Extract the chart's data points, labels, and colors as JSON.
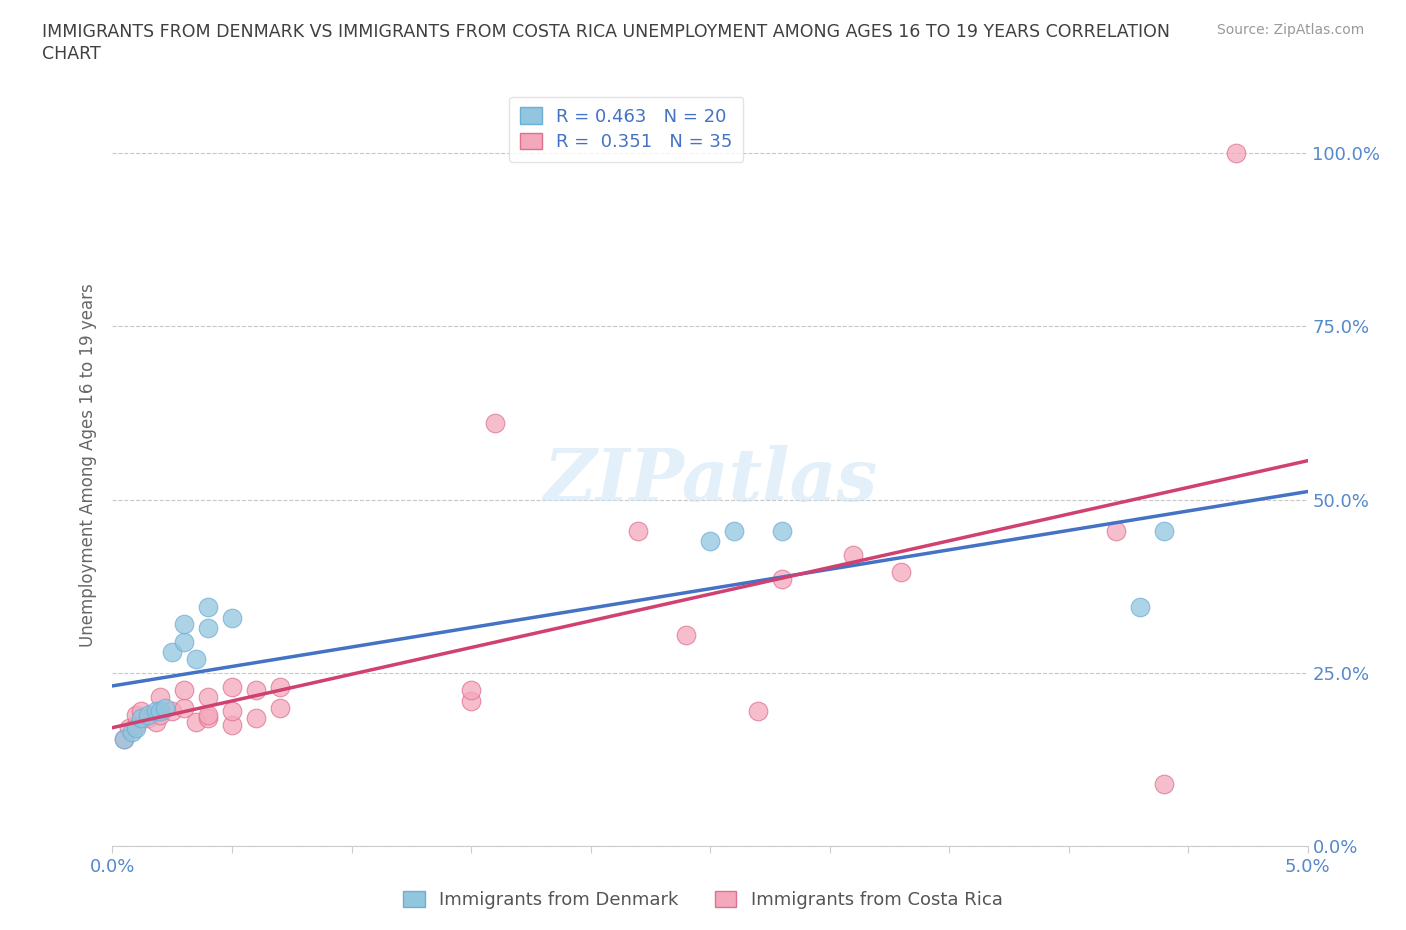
{
  "title_line1": "IMMIGRANTS FROM DENMARK VS IMMIGRANTS FROM COSTA RICA UNEMPLOYMENT AMONG AGES 16 TO 19 YEARS CORRELATION",
  "title_line2": "CHART",
  "source": "Source: ZipAtlas.com",
  "ylabel": "Unemployment Among Ages 16 to 19 years",
  "xlim": [
    0.0,
    0.05
  ],
  "ylim": [
    0.0,
    1.1
  ],
  "yticks": [
    0.0,
    0.25,
    0.5,
    0.75,
    1.0
  ],
  "ytick_labels": [
    "0.0%",
    "25.0%",
    "50.0%",
    "75.0%",
    "100.0%"
  ],
  "xticks": [
    0.0,
    0.005,
    0.01,
    0.015,
    0.02,
    0.025,
    0.03,
    0.035,
    0.04,
    0.045,
    0.05
  ],
  "xtick_labels_show": [
    "0.0%",
    "",
    "",
    "",
    "",
    "",
    "",
    "",
    "",
    "",
    "5.0%"
  ],
  "denmark_color": "#92c5de",
  "denmark_edge_color": "#6baed6",
  "costa_rica_color": "#f4a8bc",
  "costa_rica_edge_color": "#e07090",
  "denmark_line_color": "#4472c4",
  "costa_rica_line_color": "#d04070",
  "denmark_R": 0.463,
  "denmark_N": 20,
  "costa_rica_R": 0.351,
  "costa_rica_N": 35,
  "legend_label_denmark": "Immigrants from Denmark",
  "legend_label_costa_rica": "Immigrants from Costa Rica",
  "watermark": "ZIPatlas",
  "denmark_x": [
    0.0005,
    0.0008,
    0.001,
    0.0012,
    0.0015,
    0.0018,
    0.002,
    0.0022,
    0.0025,
    0.003,
    0.003,
    0.0035,
    0.004,
    0.004,
    0.005,
    0.025,
    0.026,
    0.028,
    0.043,
    0.044
  ],
  "denmark_y": [
    0.155,
    0.165,
    0.17,
    0.185,
    0.19,
    0.195,
    0.195,
    0.2,
    0.28,
    0.295,
    0.32,
    0.27,
    0.315,
    0.345,
    0.33,
    0.44,
    0.455,
    0.455,
    0.345,
    0.455
  ],
  "costa_rica_x": [
    0.0005,
    0.0007,
    0.001,
    0.001,
    0.0012,
    0.0015,
    0.0018,
    0.002,
    0.002,
    0.0025,
    0.003,
    0.003,
    0.0035,
    0.004,
    0.004,
    0.004,
    0.005,
    0.005,
    0.005,
    0.006,
    0.006,
    0.007,
    0.007,
    0.015,
    0.015,
    0.016,
    0.022,
    0.024,
    0.027,
    0.028,
    0.031,
    0.033,
    0.042,
    0.044,
    0.047
  ],
  "costa_rica_y": [
    0.155,
    0.17,
    0.175,
    0.19,
    0.195,
    0.185,
    0.18,
    0.19,
    0.215,
    0.195,
    0.2,
    0.225,
    0.18,
    0.185,
    0.19,
    0.215,
    0.175,
    0.195,
    0.23,
    0.185,
    0.225,
    0.2,
    0.23,
    0.21,
    0.225,
    0.61,
    0.455,
    0.305,
    0.195,
    0.385,
    0.42,
    0.395,
    0.455,
    0.09,
    1.0
  ],
  "grid_color": "#c8c8c8",
  "background_color": "#ffffff",
  "title_color": "#404040",
  "source_color": "#999999"
}
